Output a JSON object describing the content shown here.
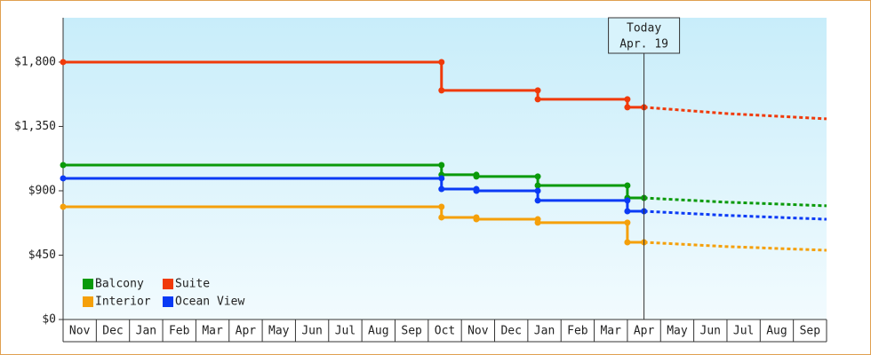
{
  "chart_data": {
    "type": "step-line",
    "xlim": [
      0,
      23
    ],
    "ylim": [
      0,
      2110
    ],
    "xticks": [
      {
        "value": 0.5,
        "label": "Nov"
      },
      {
        "value": 1.5,
        "label": "Dec"
      },
      {
        "value": 2.5,
        "label": "Jan"
      },
      {
        "value": 3.5,
        "label": "Feb"
      },
      {
        "value": 4.5,
        "label": "Mar"
      },
      {
        "value": 5.5,
        "label": "Apr"
      },
      {
        "value": 6.5,
        "label": "May"
      },
      {
        "value": 7.5,
        "label": "Jun"
      },
      {
        "value": 8.5,
        "label": "Jul"
      },
      {
        "value": 9.5,
        "label": "Aug"
      },
      {
        "value": 10.5,
        "label": "Sep"
      },
      {
        "value": 11.5,
        "label": "Oct"
      },
      {
        "value": 12.5,
        "label": "Nov"
      },
      {
        "value": 13.5,
        "label": "Dec"
      },
      {
        "value": 14.5,
        "label": "Jan"
      },
      {
        "value": 15.5,
        "label": "Feb"
      },
      {
        "value": 16.5,
        "label": "Mar"
      },
      {
        "value": 17.5,
        "label": "Apr"
      },
      {
        "value": 18.5,
        "label": "May"
      },
      {
        "value": 19.5,
        "label": "Jun"
      },
      {
        "value": 20.5,
        "label": "Jul"
      },
      {
        "value": 21.5,
        "label": "Aug"
      },
      {
        "value": 22.5,
        "label": "Sep"
      }
    ],
    "yticks": [
      {
        "value": 0,
        "label": "$0"
      },
      {
        "value": 450,
        "label": "$450"
      },
      {
        "value": 900,
        "label": "$900"
      },
      {
        "value": 1350,
        "label": "$1,350"
      },
      {
        "value": 1800,
        "label": "$1,800"
      }
    ],
    "today": {
      "x": 17.5,
      "label": [
        "Today",
        "Apr. 19"
      ]
    },
    "series": [
      {
        "name": "Balcony",
        "color": "#0a9a0a",
        "x": [
          0,
          11.4,
          11.4,
          12.45,
          12.45,
          14.3,
          14.3,
          17.0,
          17.0,
          17.5
        ],
        "values": [
          1080,
          1080,
          1012,
          1012,
          1000,
          1000,
          937,
          937,
          850,
          850
        ],
        "forecast_x": [
          17.5,
          20,
          23
        ],
        "forecast_values": [
          850,
          820,
          795
        ]
      },
      {
        "name": "Suite",
        "color": "#f03a0a",
        "x": [
          0,
          11.4,
          11.4,
          14.3,
          14.3,
          17.0,
          17.0,
          17.5
        ],
        "values": [
          1800,
          1800,
          1602,
          1602,
          1540,
          1540,
          1484,
          1484
        ],
        "forecast_x": [
          17.5,
          20,
          23
        ],
        "forecast_values": [
          1484,
          1440,
          1403
        ]
      },
      {
        "name": "Interior",
        "color": "#f5a00a",
        "x": [
          0,
          11.4,
          11.4,
          12.45,
          12.45,
          14.3,
          14.3,
          17.0,
          17.0,
          17.5
        ],
        "values": [
          788,
          788,
          714,
          714,
          701,
          701,
          677,
          677,
          540,
          540
        ],
        "forecast_x": [
          17.5,
          20,
          23
        ],
        "forecast_values": [
          540,
          510,
          484
        ]
      },
      {
        "name": "Ocean View",
        "color": "#0a3af5",
        "x": [
          0,
          11.4,
          11.4,
          12.45,
          12.45,
          14.3,
          14.3,
          17.0,
          17.0,
          17.5
        ],
        "values": [
          987,
          987,
          912,
          912,
          900,
          900,
          832,
          832,
          757,
          757
        ],
        "forecast_x": [
          17.5,
          20,
          23
        ],
        "forecast_values": [
          757,
          728,
          701
        ]
      }
    ]
  }
}
